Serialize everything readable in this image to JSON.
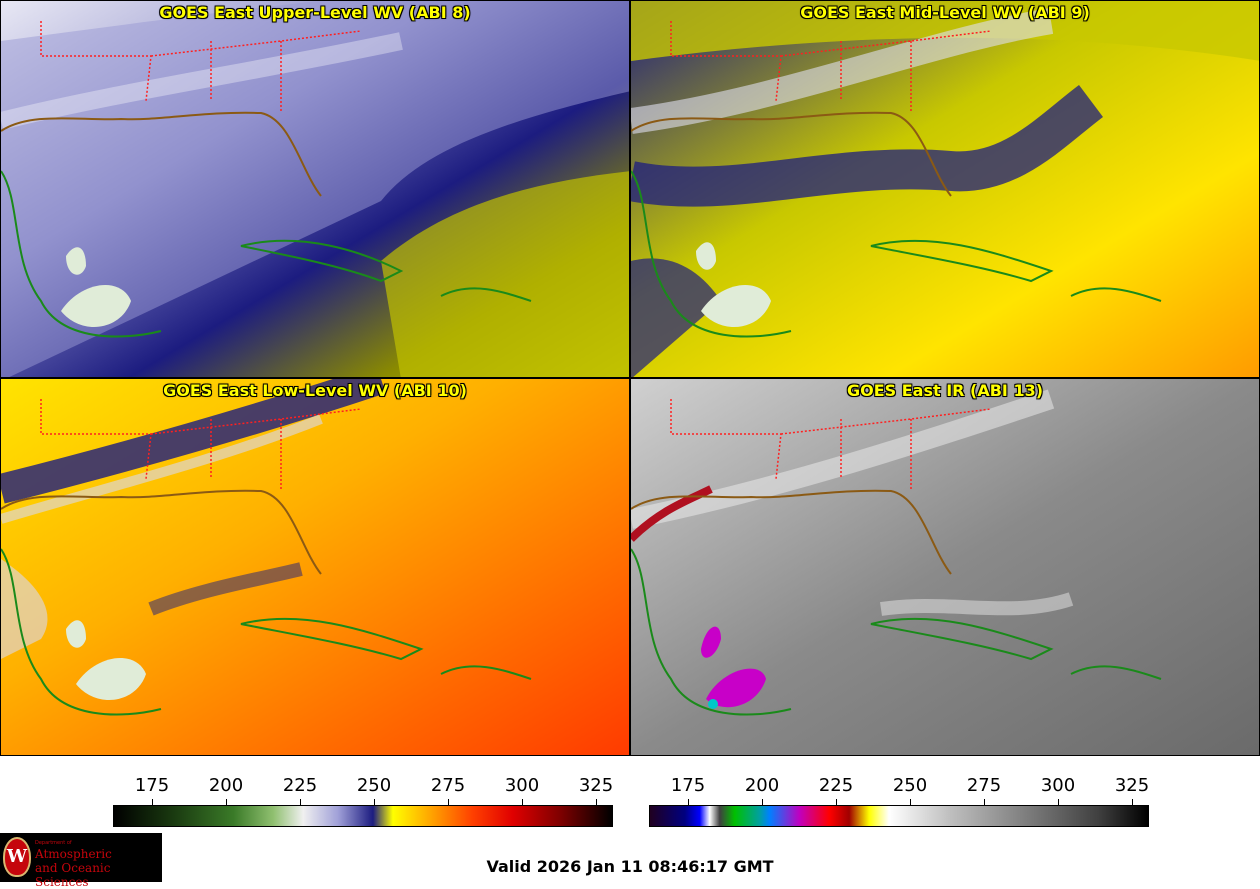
{
  "panels": [
    {
      "title": "GOES East Upper-Level WV (ABI 8)"
    },
    {
      "title": "GOES East Mid-Level WV (ABI 9)"
    },
    {
      "title": "GOES East Low-Level WV (ABI 10)"
    },
    {
      "title": "GOES East IR (ABI 13)"
    }
  ],
  "colorbars": {
    "wv": {
      "ticks": [
        "175",
        "200",
        "225",
        "250",
        "275",
        "300",
        "325"
      ]
    },
    "ir": {
      "ticks": [
        "175",
        "200",
        "225",
        "250",
        "275",
        "300",
        "325"
      ]
    }
  },
  "valid_time": "Valid 2026 Jan 11 08:46:17 GMT",
  "logo": {
    "dept": "Department of",
    "line1": "Atmospheric",
    "line2": "and Oceanic Sciences",
    "seal_letter": "W"
  },
  "colors": {
    "border_state": "#ff2020",
    "coast": "#1a8a1a",
    "coast_us": "#8b5a14",
    "title": "#ffff00"
  }
}
